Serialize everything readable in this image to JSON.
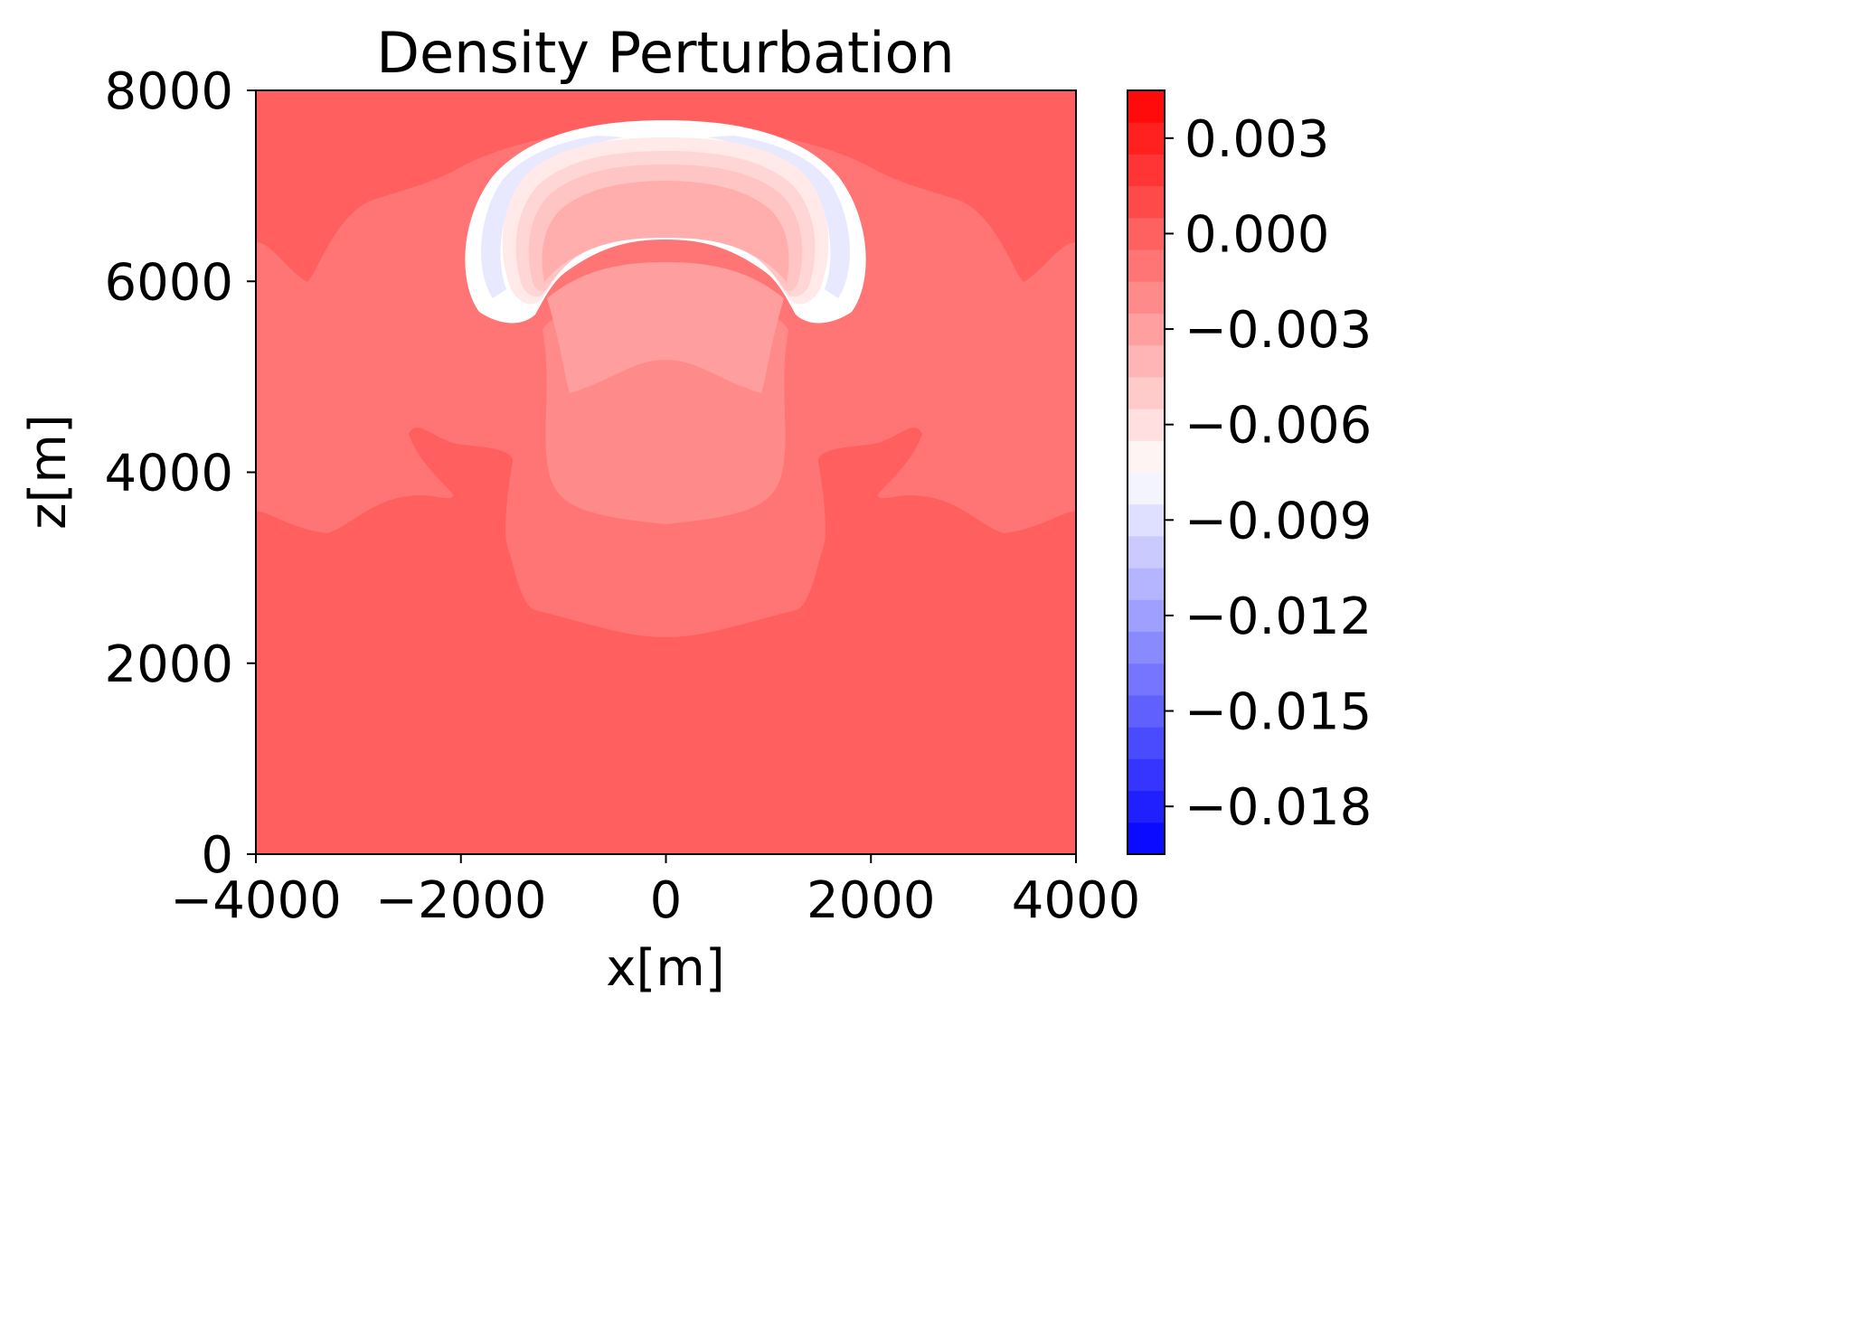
{
  "chart_data": {
    "type": "heatmap",
    "title": "Density Perturbation",
    "xlabel": "x[m]",
    "ylabel": "z[m]",
    "xlim": [
      -4000,
      4000
    ],
    "ylim": [
      0,
      8000
    ],
    "x_ticks": [
      -4000,
      -2000,
      0,
      2000,
      4000
    ],
    "x_tick_labels": [
      "−4000",
      "−2000",
      "0",
      "2000",
      "4000"
    ],
    "y_ticks": [
      0,
      2000,
      4000,
      6000,
      8000
    ],
    "y_tick_labels": [
      "0",
      "2000",
      "4000",
      "6000",
      "8000"
    ],
    "grid": false,
    "colormap": "bwr",
    "colorbar": {
      "placement": "right",
      "range": [
        -0.0195,
        0.0045
      ],
      "levels": 24,
      "ticks": [
        0.003,
        0.0,
        -0.003,
        -0.006,
        -0.009,
        -0.012,
        -0.015,
        -0.018
      ],
      "tick_labels": [
        "0.003",
        "0.000",
        "−0.003",
        "−0.006",
        "−0.009",
        "−0.012",
        "−0.015",
        "−0.018"
      ]
    },
    "field_description_levels": {
      "background": 0.0,
      "middle_plume": -0.001,
      "upper_column": -0.0025,
      "cap_core": -0.004,
      "cap_rim": -0.0075,
      "cap_edge_min": -0.0095
    },
    "colors": {
      "background": "#ff5f5f",
      "middle_plume": "#ff7575",
      "upper_column": "#ff8a8a",
      "column_top": "#ff9e9e",
      "cap_inner": "#ffadad",
      "cap_band1": "#ffc4c4",
      "cap_band2": "#ffd6d6",
      "cap_band3": "#ffe9e9",
      "cap_white": "#ffffff",
      "cap_blue": "#e8e8ff"
    }
  }
}
